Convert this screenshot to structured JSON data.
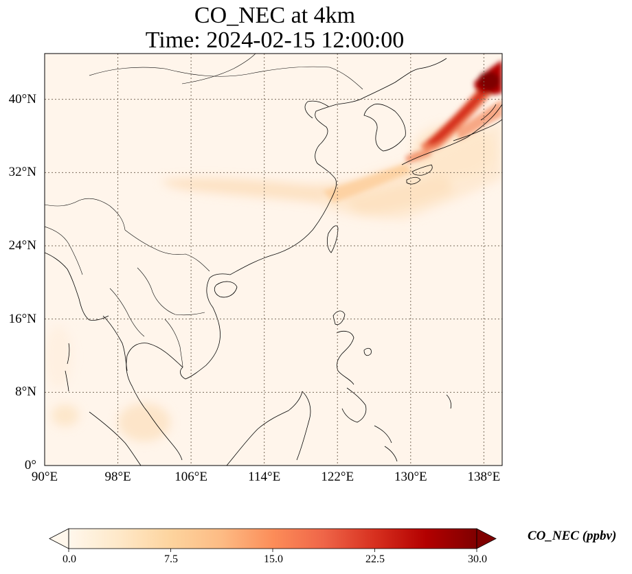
{
  "title": {
    "line1": "CO_NEC at 4km",
    "line2": "Time: 2024-02-15 12:00:00"
  },
  "map": {
    "extent": {
      "lon_min": 90,
      "lon_max": 140,
      "lat_min": 0,
      "lat_max": 45
    },
    "lat_ticks": [
      {
        "value": 0,
        "label": "0°"
      },
      {
        "value": 8,
        "label": "8°N"
      },
      {
        "value": 16,
        "label": "16°N"
      },
      {
        "value": 24,
        "label": "24°N"
      },
      {
        "value": 32,
        "label": "32°N"
      },
      {
        "value": 40,
        "label": "40°N"
      }
    ],
    "lon_ticks": [
      {
        "value": 90,
        "label": "90°E"
      },
      {
        "value": 98,
        "label": "98°E"
      },
      {
        "value": 106,
        "label": "106°E"
      },
      {
        "value": 114,
        "label": "114°E"
      },
      {
        "value": 122,
        "label": "122°E"
      },
      {
        "value": 130,
        "label": "130°E"
      },
      {
        "value": 138,
        "label": "138°E"
      }
    ],
    "gridlines": true,
    "background_color": "#fff5eb",
    "coastline_color": "#000000"
  },
  "colorbar": {
    "label": "CO_NEC (ppbv)",
    "min": 0.0,
    "max": 30.0,
    "extend": "both",
    "cmap": "OrRd",
    "colors": [
      "#fff7ec",
      "#fee8c8",
      "#fdd49e",
      "#fdbb84",
      "#fc8d59",
      "#ef6548",
      "#d7301f",
      "#b30000",
      "#7f0000"
    ],
    "ticks": [
      "0.0",
      "7.5",
      "15.0",
      "22.5",
      "30.0"
    ]
  }
}
